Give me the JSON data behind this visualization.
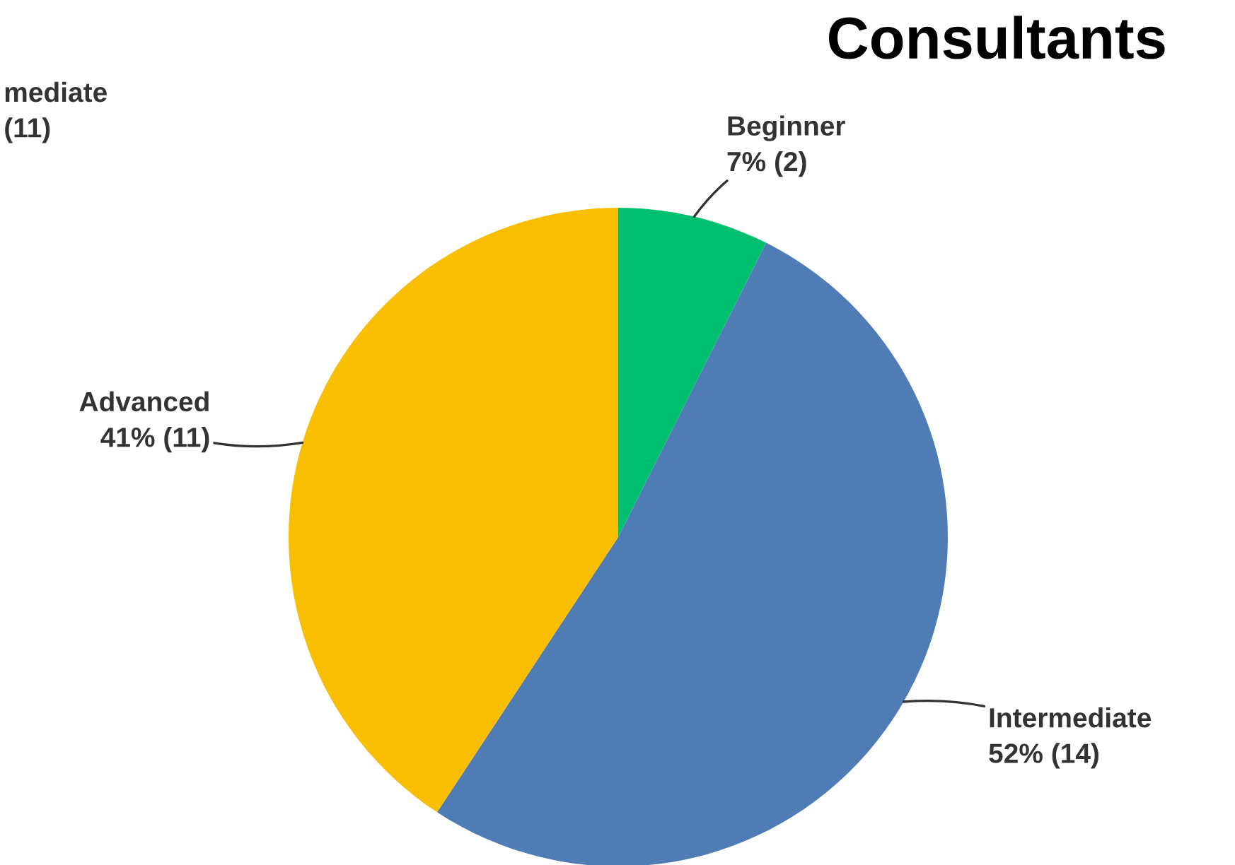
{
  "chart_data": {
    "type": "pie",
    "title": "Consultants",
    "categories": [
      "Beginner",
      "Intermediate",
      "Advanced"
    ],
    "values": [
      2,
      14,
      11
    ],
    "value_labels": [
      "7% (2)",
      "52% (14)",
      "41% (11)"
    ],
    "colors": [
      "#00bf6f",
      "#507cb6",
      "#f9be00"
    ],
    "annotations": [
      "mediate\n(11)"
    ],
    "legend": false
  }
}
